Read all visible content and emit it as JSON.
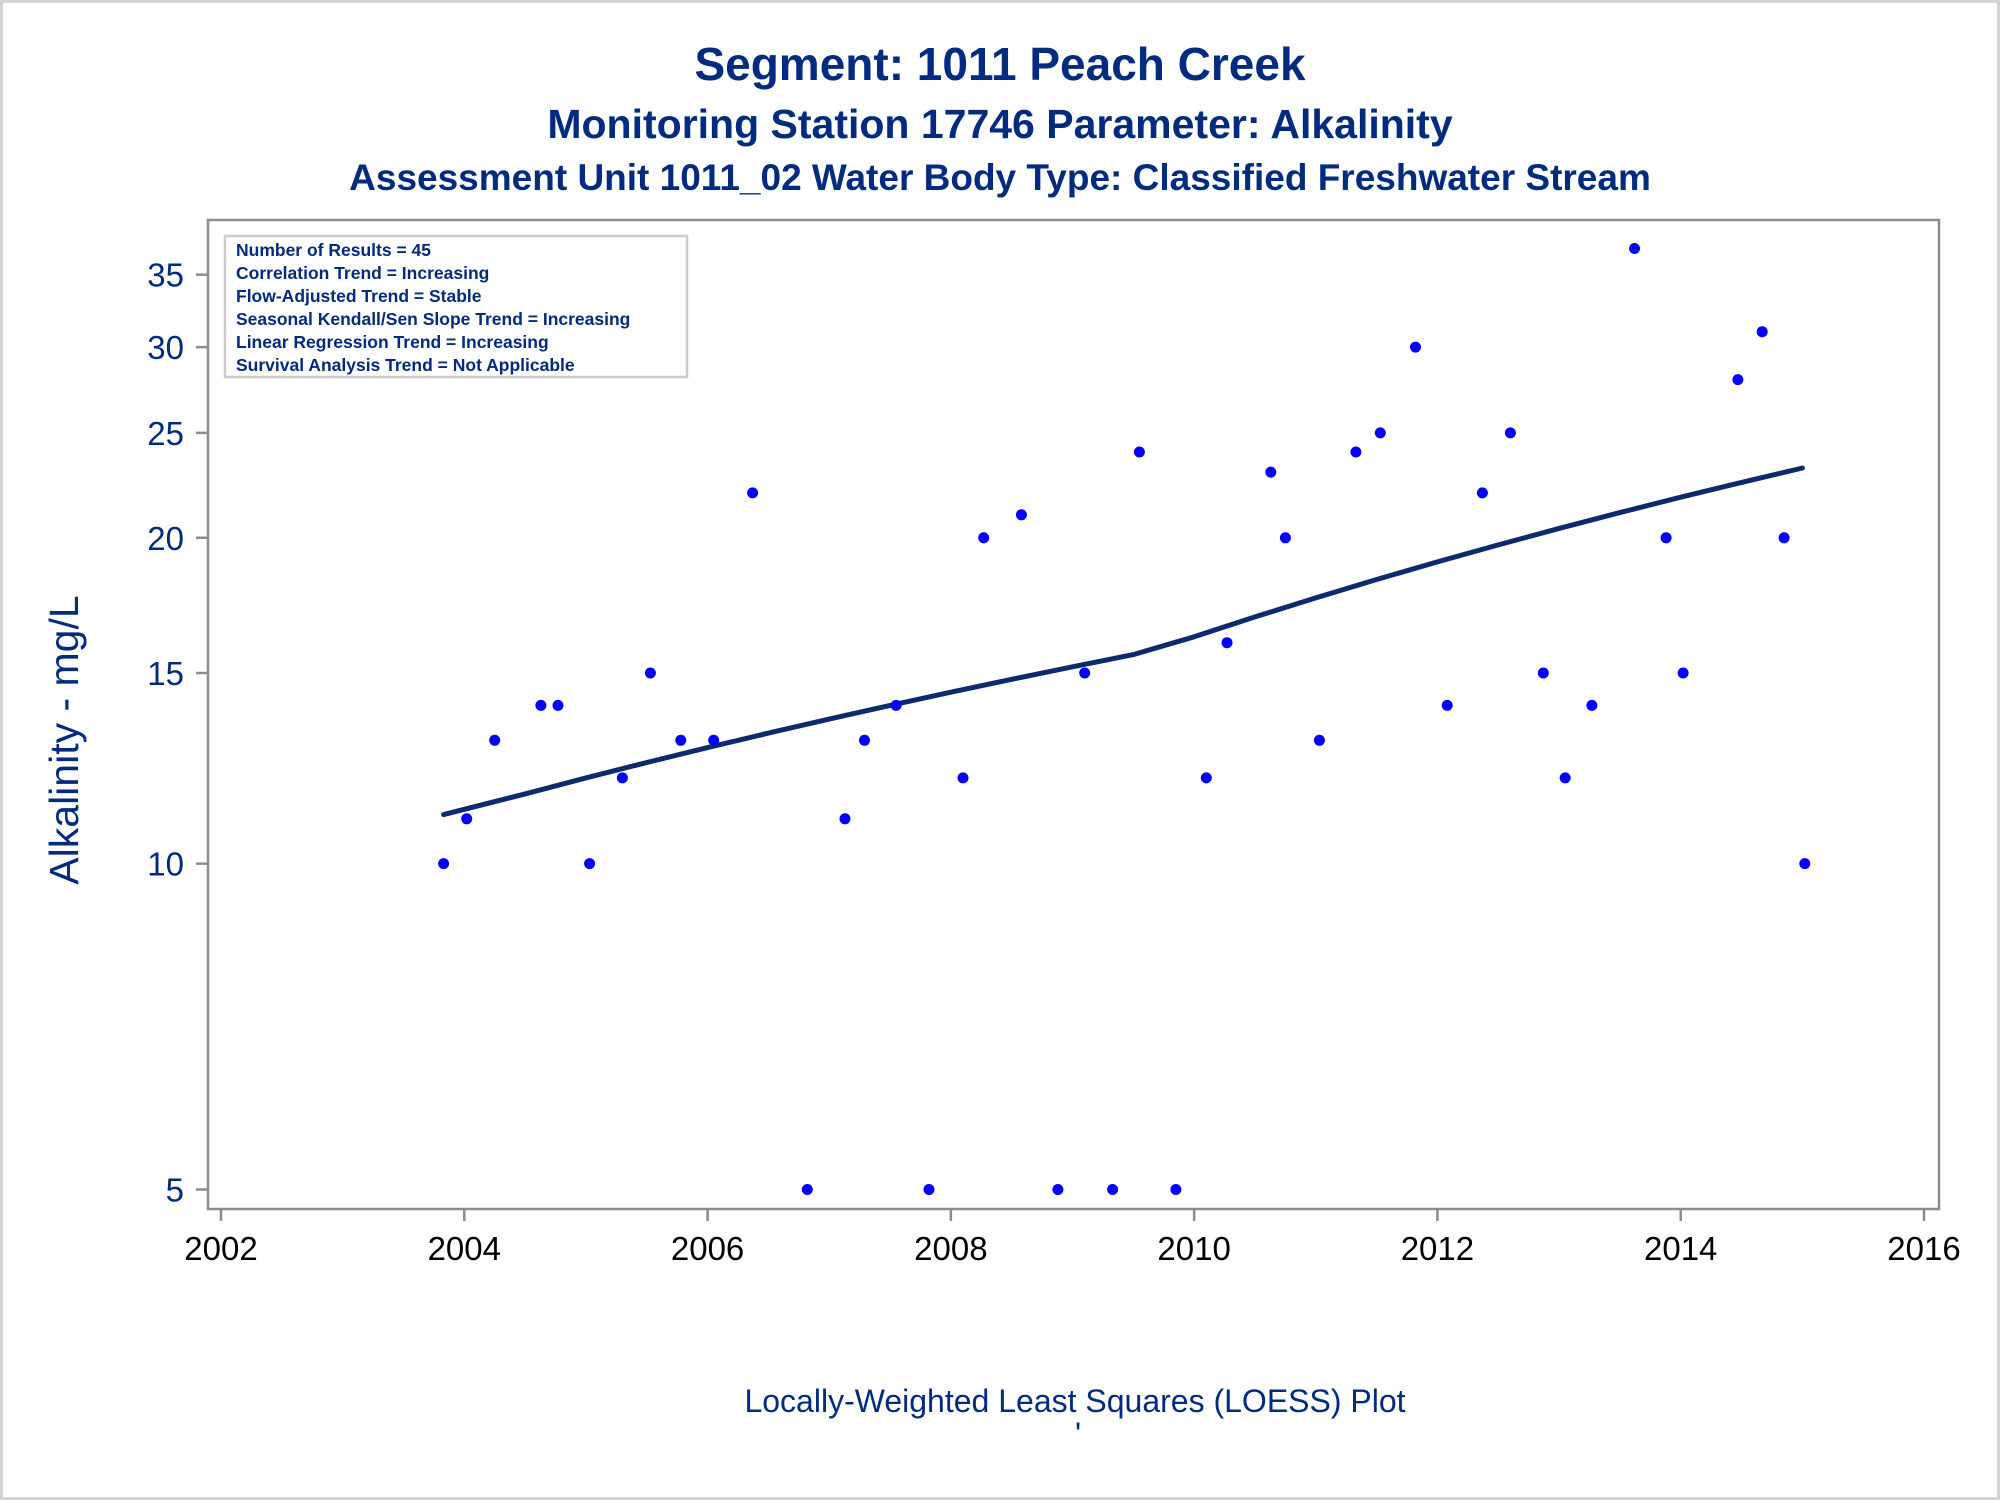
{
  "colors": {
    "title": "#002b7f",
    "axis_text": "#002b7f",
    "x_tick_text": "#000000",
    "points": "#0000ff",
    "loess_line": "#0d2a6e",
    "plot_border": "#8c8c8c"
  },
  "chart_data": {
    "type": "scatter",
    "title": "Segment: 1011  Peach Creek",
    "subtitle": "Monitoring Station 17746 Parameter: Alkalinity",
    "subtitle2": "Assessment Unit 1011_02   Water Body Type: Classified Freshwater Stream",
    "xlabel": "",
    "ylabel": "Alkalinity - mg/L",
    "footnote": "Locally-Weighted Least Squares (LOESS) Plot",
    "xlim": [
      2002,
      2016
    ],
    "ylim": [
      4.9,
      38
    ],
    "yscale": "log",
    "xticks": [
      2002,
      2004,
      2006,
      2008,
      2010,
      2012,
      2014,
      2016
    ],
    "yticks": [
      5,
      10,
      15,
      20,
      25,
      30,
      35
    ],
    "grid": false,
    "legend": "none",
    "info_box": {
      "position": "top-left",
      "lines": [
        "Number of Results = 45",
        "Correlation Trend = Increasing",
        "Flow-Adjusted Trend = Stable",
        "Seasonal Kendall/Sen Slope Trend = Increasing",
        "Linear Regression Trend = Increasing",
        "Survival Analysis Trend = Not Applicable"
      ]
    },
    "series": [
      {
        "type": "scatter",
        "x": [
          2003.83,
          2004.02,
          2004.25,
          2004.63,
          2004.77,
          2005.03,
          2005.3,
          2005.53,
          2005.78,
          2006.05,
          2006.37,
          2006.82,
          2007.13,
          2007.29,
          2007.55,
          2007.82,
          2008.1,
          2008.27,
          2008.58,
          2008.88,
          2009.1,
          2009.33,
          2009.55,
          2009.85,
          2010.1,
          2010.27,
          2010.63,
          2010.75,
          2011.03,
          2011.33,
          2011.53,
          2011.82,
          2012.08,
          2012.37,
          2012.6,
          2012.87,
          2013.05,
          2013.27,
          2013.62,
          2013.88,
          2014.02,
          2014.47,
          2014.67,
          2014.85,
          2015.02
        ],
        "y": [
          10,
          11,
          13,
          14,
          14,
          10,
          12,
          15,
          13,
          13,
          22,
          5,
          11,
          13,
          14,
          5,
          12,
          20,
          21,
          5,
          15,
          5,
          24,
          5,
          12,
          16,
          23,
          20,
          13,
          24,
          25,
          30,
          14,
          22,
          25,
          15,
          12,
          14,
          37,
          20,
          15,
          28,
          31,
          20,
          10
        ]
      },
      {
        "type": "line",
        "x": [
          2003.83,
          2004.5,
          2005.0,
          2005.5,
          2006.0,
          2006.5,
          2007.0,
          2007.5,
          2008.0,
          2008.5,
          2009.0,
          2009.5,
          2010.0,
          2010.5,
          2011.0,
          2011.5,
          2012.0,
          2012.5,
          2013.0,
          2013.5,
          2014.0,
          2014.5,
          2015.0
        ],
        "y": [
          11.1,
          11.6,
          12.0,
          12.4,
          12.8,
          13.2,
          13.6,
          14.0,
          14.4,
          14.8,
          15.2,
          15.6,
          16.2,
          16.9,
          17.6,
          18.3,
          19.0,
          19.7,
          20.4,
          21.1,
          21.8,
          22.5,
          23.2
        ]
      }
    ]
  }
}
